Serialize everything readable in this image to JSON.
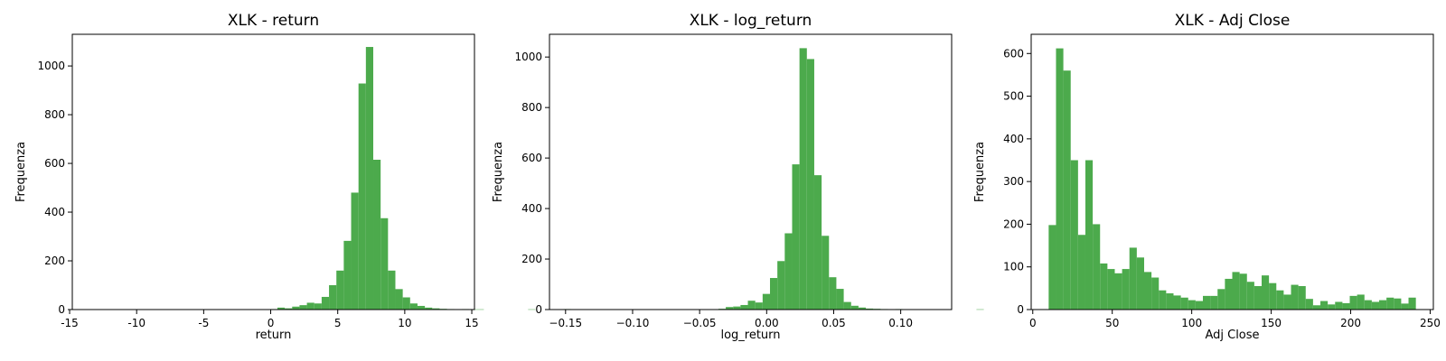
{
  "chart_data": [
    {
      "type": "histogram",
      "title": "XLK - return",
      "xlabel": "return",
      "ylabel": "Frequenza",
      "xlim": [
        -14.8,
        15.2
      ],
      "ylim": [
        0,
        1130
      ],
      "xticks": [
        -15,
        -10,
        -5,
        0,
        5,
        10,
        15
      ],
      "yticks": [
        0,
        200,
        400,
        600,
        800,
        1000
      ],
      "color": "#4caa4c",
      "bin_start": -13.8,
      "bin_width": 0.55,
      "counts": [
        1,
        0,
        0,
        0,
        0,
        0,
        0,
        0,
        0,
        0,
        0,
        1,
        0,
        1,
        0,
        1,
        0,
        0,
        0,
        1,
        0,
        1,
        0,
        0,
        1,
        2,
        8,
        5,
        12,
        18,
        28,
        25,
        52,
        100,
        160,
        282,
        480,
        928,
        1078,
        615,
        375,
        160,
        84,
        50,
        25,
        15,
        8,
        5,
        3,
        2,
        1,
        2,
        1,
        1,
        0,
        0,
        0,
        0,
        0,
        0,
        1,
        0,
        0,
        0,
        0,
        0,
        1,
        0,
        0,
        0,
        0,
        0,
        1
      ]
    },
    {
      "type": "histogram",
      "title": "XLK - log_return",
      "xlabel": "log_return",
      "ylabel": "Frequenza",
      "xlim": [
        -0.162,
        0.138
      ],
      "ylim": [
        0,
        1090
      ],
      "xticks": [
        -0.15,
        -0.1,
        -0.05,
        0.0,
        0.05,
        0.1
      ],
      "xticklabels": [
        "−0.15",
        "−0.10",
        "−0.05",
        "0.00",
        "0.05",
        "0.10"
      ],
      "yticks": [
        0,
        200,
        400,
        600,
        800,
        1000
      ],
      "color": "#4caa4c",
      "bin_start": -0.1515,
      "bin_width": 0.0055,
      "counts": [
        2,
        0,
        0,
        0,
        0,
        0,
        0,
        0,
        0,
        0,
        0,
        1,
        0,
        1,
        0,
        1,
        0,
        0,
        0,
        1,
        0,
        3,
        10,
        12,
        18,
        35,
        28,
        62,
        125,
        192,
        302,
        575,
        1035,
        992,
        532,
        292,
        128,
        82,
        30,
        15,
        8,
        4,
        3,
        2,
        1,
        2,
        1,
        1,
        0,
        0,
        1,
        1,
        0,
        0,
        0,
        0,
        1,
        0,
        0,
        0
      ]
    },
    {
      "type": "histogram",
      "title": "XLK - Adj Close",
      "xlabel": "Adj Close",
      "ylabel": "Frequenza",
      "xlim": [
        -1,
        252
      ],
      "ylim": [
        0,
        645
      ],
      "xticks": [
        0,
        50,
        100,
        150,
        200,
        250
      ],
      "yticks": [
        0,
        100,
        200,
        300,
        400,
        500,
        600
      ],
      "color": "#4caa4c",
      "bin_start": 10,
      "bin_width": 4.62,
      "counts": [
        198,
        612,
        560,
        350,
        175,
        350,
        200,
        108,
        95,
        85,
        95,
        145,
        122,
        88,
        75,
        45,
        38,
        33,
        28,
        22,
        20,
        32,
        32,
        48,
        72,
        88,
        84,
        65,
        55,
        80,
        62,
        45,
        35,
        58,
        55,
        25,
        10,
        20,
        12,
        18,
        15,
        32,
        35,
        22,
        18,
        22,
        28,
        26,
        14,
        28
      ]
    }
  ]
}
